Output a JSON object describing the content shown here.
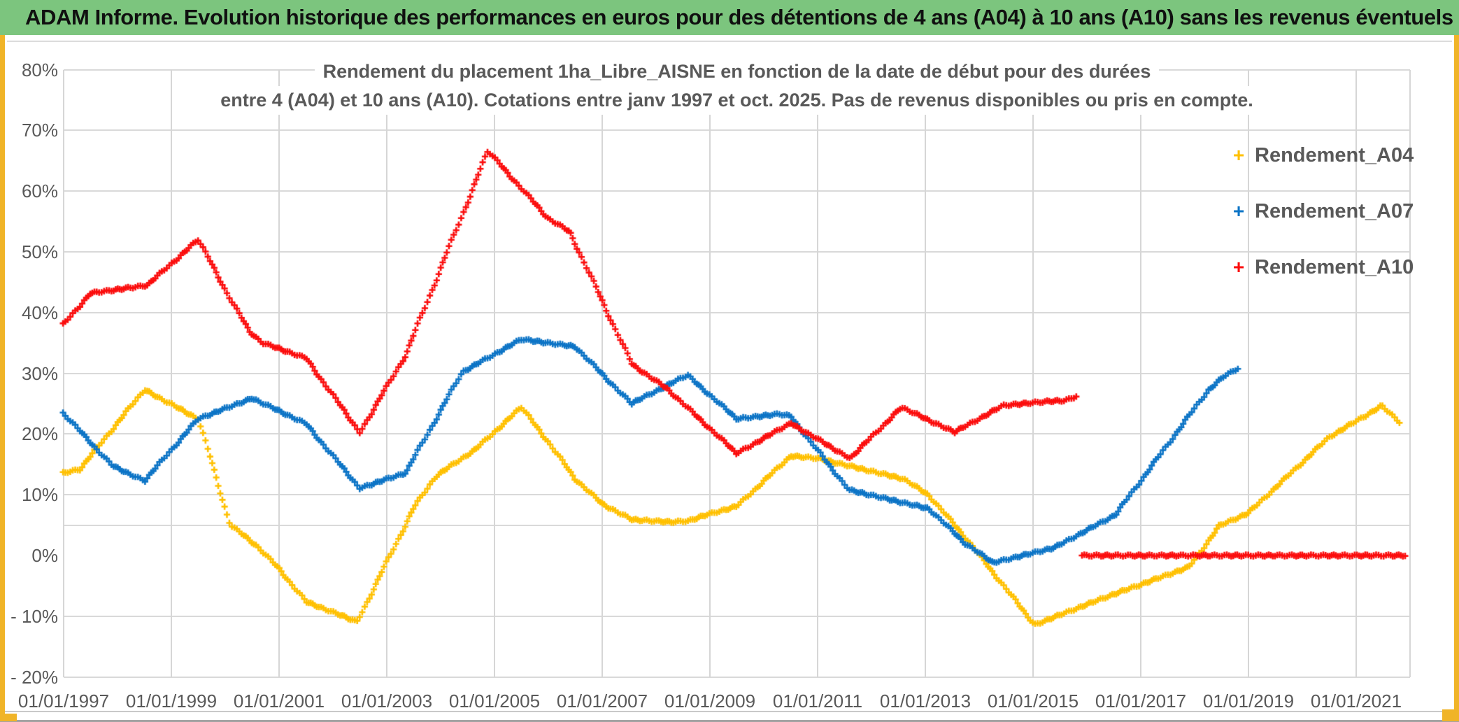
{
  "page": {
    "header": {
      "title": "ADAM Informe. Evolution historique des performances en euros pour des détentions de 4 ans (A04) à 10 ans (A10) sans les revenus éventuels"
    },
    "colors": {
      "header_bg": "#7CC57E",
      "frame_gold": "#F0B428",
      "gridline": "#D9D9D9",
      "axis_text": "#595959",
      "title_text": "#595959",
      "series_a04": "#FFC000",
      "series_a07": "#0C74C6",
      "series_a10": "#FB0D0D"
    }
  },
  "chart_data": {
    "type": "line",
    "marker": "+",
    "title_lines": [
      "Rendement du placement 1ha_Libre_AISNE en fonction de la date de début pour des durées",
      "entre 4 (A04) et 10 ans (A10). Cotations entre janv 1997 et oct. 2025. Pas de revenus disponibles ou pris en compte."
    ],
    "x_axis": {
      "range_years": [
        1997,
        2022
      ],
      "tick_years": [
        1997,
        1999,
        2001,
        2003,
        2005,
        2007,
        2009,
        2011,
        2013,
        2015,
        2017,
        2019,
        2021
      ],
      "tick_labels": [
        "01/01/1997",
        "01/01/1999",
        "01/01/2001",
        "01/01/2003",
        "01/01/2005",
        "01/01/2007",
        "01/01/2009",
        "01/01/2011",
        "01/01/2013",
        "01/01/2015",
        "01/01/2017",
        "01/01/2019",
        "01/01/2021"
      ],
      "gridline_years": [
        1999,
        2001,
        2003,
        2005,
        2007,
        2009,
        2011,
        2013,
        2015,
        2017,
        2019,
        2021
      ]
    },
    "y_axis": {
      "range": [
        -20,
        80
      ],
      "tick_values": [
        80,
        70,
        60,
        50,
        40,
        30,
        20,
        10,
        0,
        -10,
        -20
      ],
      "tick_labels": [
        "80%",
        "70%",
        "60%",
        "50%",
        "40%",
        "30%",
        "20%",
        "10%",
        "0%",
        "- 10%",
        "- 20%"
      ],
      "gridline_values": [
        80,
        70,
        60,
        50,
        40,
        30,
        20,
        10,
        5,
        -10,
        -20
      ],
      "grid": true
    },
    "legend": {
      "position": "right",
      "entries": [
        {
          "label": "Rendement_A04",
          "color": "#FFC000",
          "marker": "+"
        },
        {
          "label": "Rendement_A07",
          "color": "#0C74C6",
          "marker": "+"
        },
        {
          "label": "Rendement_A10",
          "color": "#FB0D0D",
          "marker": "+"
        }
      ]
    },
    "series": [
      {
        "name": "Rendement_A04",
        "color": "#FFC000",
        "unit": "percent",
        "segments": [
          [
            [
              1997.0,
              13.6
            ],
            [
              1997.3,
              14.2
            ],
            [
              1998.5,
              27.3
            ],
            [
              1999.5,
              22.5
            ],
            [
              2000.1,
              5.0
            ],
            [
              2000.6,
              1.5
            ],
            [
              2001.0,
              -2.2
            ],
            [
              2001.5,
              -7.6
            ],
            [
              2002.45,
              -10.9
            ],
            [
              2003.5,
              7.8
            ],
            [
              2003.9,
              13.0
            ],
            [
              2004.65,
              17.5
            ],
            [
              2005.5,
              24.4
            ],
            [
              2006.0,
              18.7
            ],
            [
              2006.5,
              12.6
            ],
            [
              2007.0,
              8.5
            ],
            [
              2007.55,
              5.9
            ],
            [
              2008.3,
              5.5
            ],
            [
              2008.6,
              5.7
            ],
            [
              2008.94,
              6.7
            ],
            [
              2009.5,
              8.1
            ],
            [
              2010.5,
              16.4
            ],
            [
              2011.0,
              16.0
            ],
            [
              2012.6,
              12.6
            ],
            [
              2013.07,
              9.9
            ],
            [
              2013.74,
              3.0
            ],
            [
              2015.03,
              -11.4
            ],
            [
              2016.4,
              -6.7
            ],
            [
              2017.9,
              -1.9
            ],
            [
              2018.46,
              4.9
            ],
            [
              2019.0,
              7.0
            ],
            [
              2020.5,
              19.5
            ],
            [
              2021.49,
              24.7
            ],
            [
              2021.83,
              21.6
            ]
          ]
        ]
      },
      {
        "name": "Rendement_A07",
        "color": "#0C74C6",
        "unit": "percent",
        "segments": [
          [
            [
              1997.0,
              23.4
            ],
            [
              1997.9,
              14.8
            ],
            [
              1998.5,
              12.3
            ],
            [
              1999.5,
              22.5
            ],
            [
              2000.5,
              25.9
            ],
            [
              2001.5,
              21.7
            ],
            [
              2002.5,
              11.1
            ],
            [
              2003.35,
              13.6
            ],
            [
              2004.4,
              30.2
            ],
            [
              2005.5,
              35.6
            ],
            [
              2006.5,
              34.4
            ],
            [
              2007.54,
              25.0
            ],
            [
              2008.58,
              29.7
            ],
            [
              2009.5,
              22.5
            ],
            [
              2010.3,
              23.3
            ],
            [
              2010.5,
              22.9
            ],
            [
              2011.58,
              10.8
            ],
            [
              2013.07,
              7.7
            ],
            [
              2013.74,
              2.0
            ],
            [
              2014.26,
              -1.2
            ],
            [
              2015.4,
              1.3
            ],
            [
              2016.53,
              6.7
            ],
            [
              2018.24,
              27.1
            ],
            [
              2018.55,
              29.5
            ],
            [
              2018.83,
              31.0
            ]
          ]
        ]
      },
      {
        "name": "Rendement_A10",
        "color": "#FB0D0D",
        "unit": "percent",
        "segments": [
          [
            [
              1997.0,
              38.1
            ],
            [
              1997.5,
              43.2
            ],
            [
              1998.0,
              43.8
            ],
            [
              1998.55,
              44.5
            ],
            [
              1999.5,
              52.0
            ],
            [
              2000.15,
              41.4
            ],
            [
              2000.45,
              36.9
            ],
            [
              2000.7,
              35.0
            ],
            [
              2001.5,
              32.5
            ],
            [
              2002.5,
              20.3
            ],
            [
              2003.35,
              33.0
            ],
            [
              2004.88,
              66.6
            ],
            [
              2006.0,
              55.5
            ],
            [
              2006.4,
              53.3
            ],
            [
              2007.55,
              31.5
            ],
            [
              2008.2,
              27.5
            ],
            [
              2009.5,
              16.8
            ],
            [
              2010.5,
              21.8
            ],
            [
              2011.6,
              16.0
            ],
            [
              2012.56,
              24.4
            ],
            [
              2013.54,
              20.3
            ],
            [
              2014.45,
              24.7
            ],
            [
              2015.3,
              25.4
            ],
            [
              2015.6,
              25.5
            ],
            [
              2015.82,
              26.3
            ]
          ],
          [
            [
              2015.92,
              0.0
            ],
            [
              2021.92,
              0.0
            ]
          ]
        ]
      }
    ]
  }
}
